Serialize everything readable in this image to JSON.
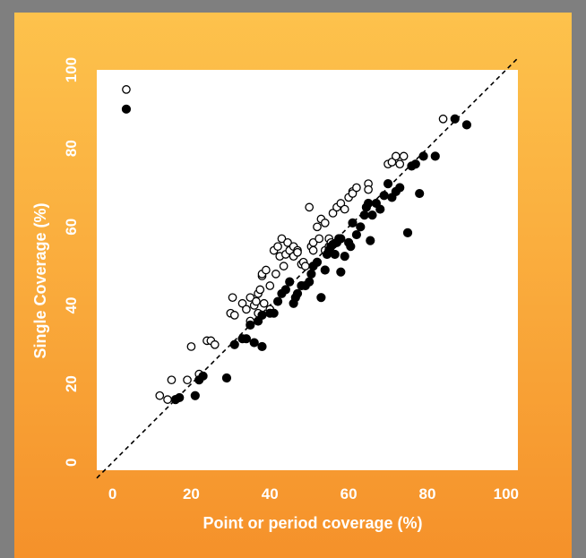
{
  "colors": {
    "background_gray": "#7f7f7f",
    "panel_orange_top": "#fdc24c",
    "panel_orange_bottom": "#f5912a",
    "plot_bg": "#ffffff",
    "text": "#ffffff",
    "marker": "#000000"
  },
  "chart_data": {
    "type": "scatter",
    "title": "",
    "xlabel": "Point or period coverage (%)",
    "ylabel": "Single Coverage (%)",
    "xlim": [
      -4,
      103
    ],
    "ylim": [
      -2,
      100
    ],
    "xticks": [
      "0",
      "20",
      "40",
      "60",
      "80",
      "100"
    ],
    "yticks": [
      "0",
      "20",
      "40",
      "60",
      "80",
      "100"
    ],
    "grid": false,
    "reference_line": {
      "style": "dashed",
      "from": [
        -4,
        -4
      ],
      "to": [
        103,
        103
      ]
    },
    "series": [
      {
        "marker": "open-circle",
        "x": [
          3.5,
          12,
          14,
          15,
          19,
          20,
          22,
          24,
          25,
          26,
          30,
          30.5,
          31,
          33,
          34,
          35,
          35,
          36,
          36.5,
          37,
          37,
          37.5,
          38,
          38,
          38.5,
          39,
          40,
          40,
          41,
          41.5,
          42,
          42.5,
          43,
          43.5,
          44,
          44.5,
          45,
          46,
          46,
          47,
          47,
          48,
          48.5,
          49,
          50,
          50.5,
          51,
          51,
          52,
          52.5,
          53,
          54,
          54,
          55,
          55,
          55.5,
          56,
          57,
          58,
          59,
          60,
          61,
          61,
          62,
          65,
          65,
          70,
          71,
          72,
          73,
          74,
          84
        ],
        "y": [
          95,
          17,
          16,
          21,
          21,
          29.5,
          22.5,
          31,
          31,
          30,
          38,
          42,
          37.5,
          40.5,
          39,
          42,
          36,
          40,
          41,
          38,
          43,
          44,
          47.5,
          48,
          40.5,
          49,
          45,
          39,
          54,
          48,
          55,
          52.5,
          57,
          50,
          53,
          56,
          54,
          52.5,
          55,
          54,
          53.5,
          50.5,
          51,
          50,
          65,
          55,
          56,
          54,
          60,
          57,
          62,
          54,
          61,
          55,
          57,
          56,
          63.5,
          65,
          66,
          64.5,
          67.5,
          69,
          68.5,
          70,
          71,
          69.5,
          76,
          76.5,
          78,
          76,
          78,
          87.5
        ]
      },
      {
        "marker": "filled-circle",
        "x": [
          3.5,
          16,
          17,
          21,
          22,
          23,
          29,
          31,
          33,
          34,
          35,
          36,
          37,
          38,
          38,
          40,
          41,
          42,
          43,
          44,
          45,
          46,
          46.5,
          47,
          48,
          49,
          50,
          50.5,
          51,
          52,
          53,
          54,
          54.5,
          55,
          55.5,
          56,
          56.5,
          57,
          57.5,
          58,
          58,
          59,
          60,
          60.5,
          61,
          62,
          63,
          64,
          64.5,
          65,
          65.5,
          66,
          67,
          68,
          69,
          70,
          71,
          72,
          73,
          75,
          76,
          77,
          78,
          79,
          82,
          87,
          90
        ],
        "y": [
          90,
          16,
          16.5,
          17,
          21,
          22,
          21.5,
          30,
          31.5,
          31.5,
          35,
          30.5,
          36,
          29.5,
          37.5,
          38,
          38,
          41,
          43,
          44,
          46,
          40.5,
          42,
          43,
          45,
          45,
          46,
          48,
          50,
          51,
          42,
          49,
          53,
          54,
          55,
          55.5,
          53,
          56,
          57,
          57,
          48.5,
          52.5,
          56,
          55,
          61,
          58,
          60,
          63,
          65,
          66,
          56.5,
          63,
          66,
          64.5,
          68,
          71,
          67.5,
          69,
          70,
          58.5,
          75.5,
          76,
          68.5,
          78,
          78,
          87.5,
          86
        ]
      }
    ]
  }
}
